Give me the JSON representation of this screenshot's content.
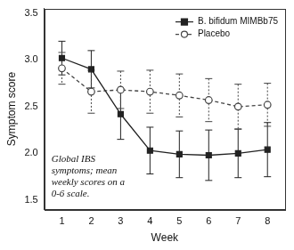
{
  "chart_data": {
    "type": "line",
    "x_label": "Week",
    "y_label": "Symptom score",
    "annotation": "Global IBS symptoms; mean weekly scores on a 0-6 scale.",
    "x": [
      1,
      2,
      3,
      4,
      5,
      6,
      7,
      8
    ],
    "xlim": [
      0.4,
      8.6
    ],
    "xticks": [
      1,
      2,
      3,
      4,
      5,
      6,
      7,
      8
    ],
    "ylim": [
      1.4,
      3.55
    ],
    "yticks": [
      1.5,
      {
        "value": 2,
        "label": "2.0"
      },
      2.5,
      {
        "value": 3,
        "label": "3.0"
      },
      3.5
    ],
    "grid": false,
    "legend": "upper right",
    "series": [
      {
        "name": "B. bifidum MIMBb75",
        "color": "#222222",
        "marker": "square",
        "line_style": "solid",
        "values": [
          3.02,
          2.9,
          2.42,
          2.03,
          1.99,
          1.98,
          2.0,
          2.04
        ],
        "errors": [
          0.18,
          0.2,
          0.27,
          0.25,
          0.25,
          0.27,
          0.26,
          0.29
        ]
      },
      {
        "name": "Placebo",
        "color": "#444444",
        "marker": "open_circle",
        "line_style": "dashed",
        "values": [
          2.91,
          2.66,
          2.68,
          2.66,
          2.62,
          2.57,
          2.5,
          2.52
        ],
        "errors": [
          0.17,
          0.23,
          0.2,
          0.23,
          0.23,
          0.23,
          0.24,
          0.23
        ]
      }
    ]
  }
}
